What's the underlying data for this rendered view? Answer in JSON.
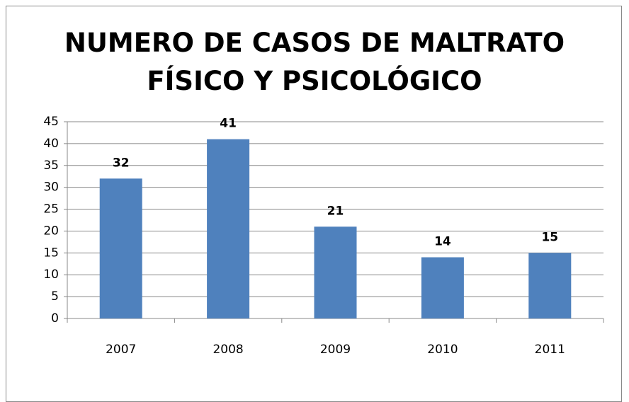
{
  "chart_data": {
    "type": "bar",
    "title": "NUMERO DE CASOS DE MALTRATO FÍSICO Y PSICOLÓGICO",
    "categories": [
      "2007",
      "2008",
      "2009",
      "2010",
      "2011"
    ],
    "values": [
      32,
      41,
      21,
      14,
      15
    ],
    "color": "#4f81bd",
    "ylim": [
      0,
      45
    ],
    "yticks": [
      0,
      5,
      10,
      15,
      20,
      25,
      30,
      35,
      40,
      45
    ],
    "grid": true
  }
}
